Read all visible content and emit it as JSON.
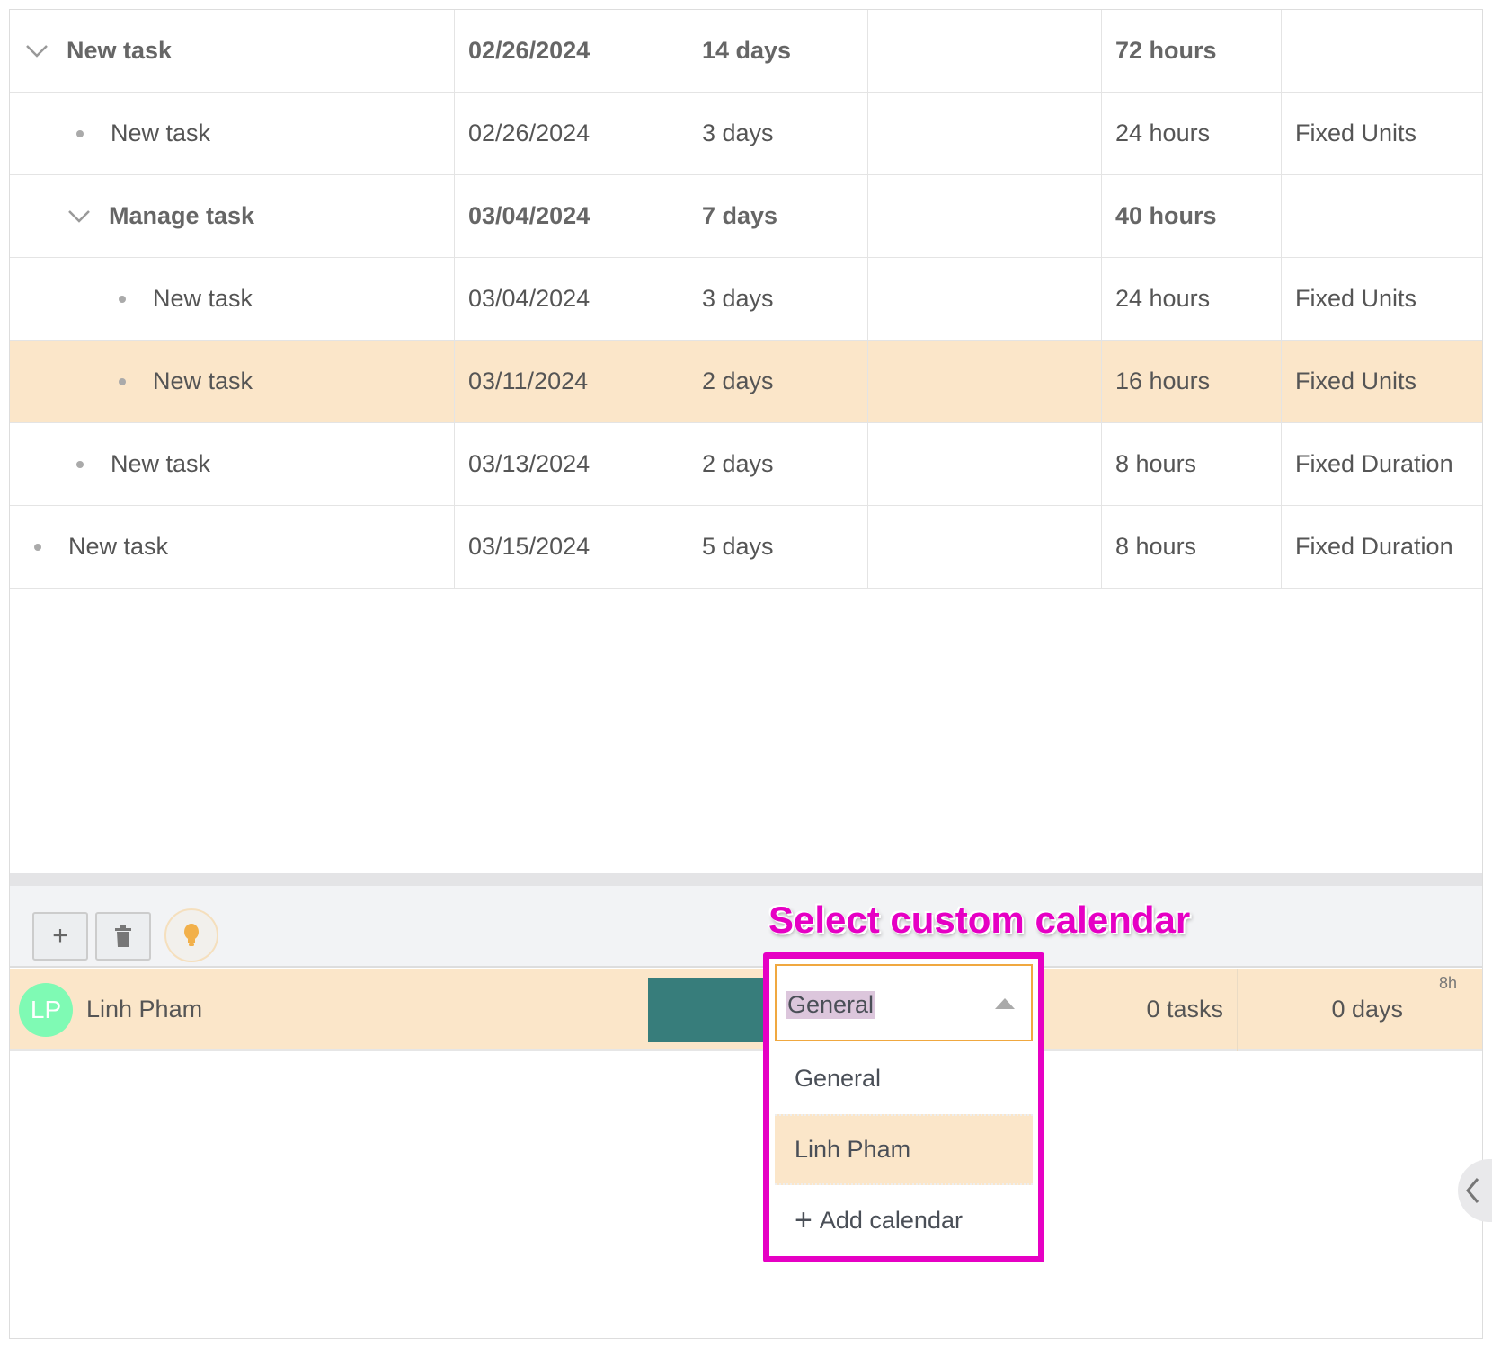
{
  "tasks": [
    {
      "name": "New task",
      "date": "02/26/2024",
      "duration": "14 days",
      "col4": "",
      "work": "72 hours",
      "type": "",
      "level": 0,
      "parent": true
    },
    {
      "name": "New task",
      "date": "02/26/2024",
      "duration": "3 days",
      "col4": "",
      "work": "24 hours",
      "type": "Fixed Units",
      "level": 1,
      "parent": false
    },
    {
      "name": "Manage task",
      "date": "03/04/2024",
      "duration": "7 days",
      "col4": "",
      "work": "40 hours",
      "type": "",
      "level": 1,
      "parent": true
    },
    {
      "name": "New task",
      "date": "03/04/2024",
      "duration": "3 days",
      "col4": "",
      "work": "24 hours",
      "type": "Fixed Units",
      "level": 2,
      "parent": false
    },
    {
      "name": "New task",
      "date": "03/11/2024",
      "duration": "2 days",
      "col4": "",
      "work": "16 hours",
      "type": "Fixed Units",
      "level": 2,
      "parent": false,
      "selected": true
    },
    {
      "name": "New task",
      "date": "03/13/2024",
      "duration": "2 days",
      "col4": "",
      "work": "8 hours",
      "type": "Fixed Duration",
      "level": 1,
      "parent": false
    },
    {
      "name": "New task",
      "date": "03/15/2024",
      "duration": "5 days",
      "col4": "",
      "work": "8 hours",
      "type": "Fixed Duration",
      "level": 0,
      "parent": false
    }
  ],
  "toolbar": {
    "add_icon": "plus-icon",
    "delete_icon": "trash-icon",
    "tip_icon": "lightbulb-icon"
  },
  "callout": "Select custom calendar",
  "resource": {
    "initials": "LP",
    "name": "Linh Pham",
    "avatar_color": "#7ffab4",
    "color": "#377d7b",
    "calendar": "General",
    "tasks": "0 tasks",
    "days": "0 days",
    "histogram_label": "8h"
  },
  "calendar_dropdown": {
    "options": [
      "General",
      "Linh Pham"
    ],
    "highlighted": "Linh Pham",
    "add_label": "Add calendar"
  },
  "colors": {
    "selected_row": "#fbe6c9",
    "annotation": "#e600c4",
    "dropdown_focus": "#f0a840"
  }
}
